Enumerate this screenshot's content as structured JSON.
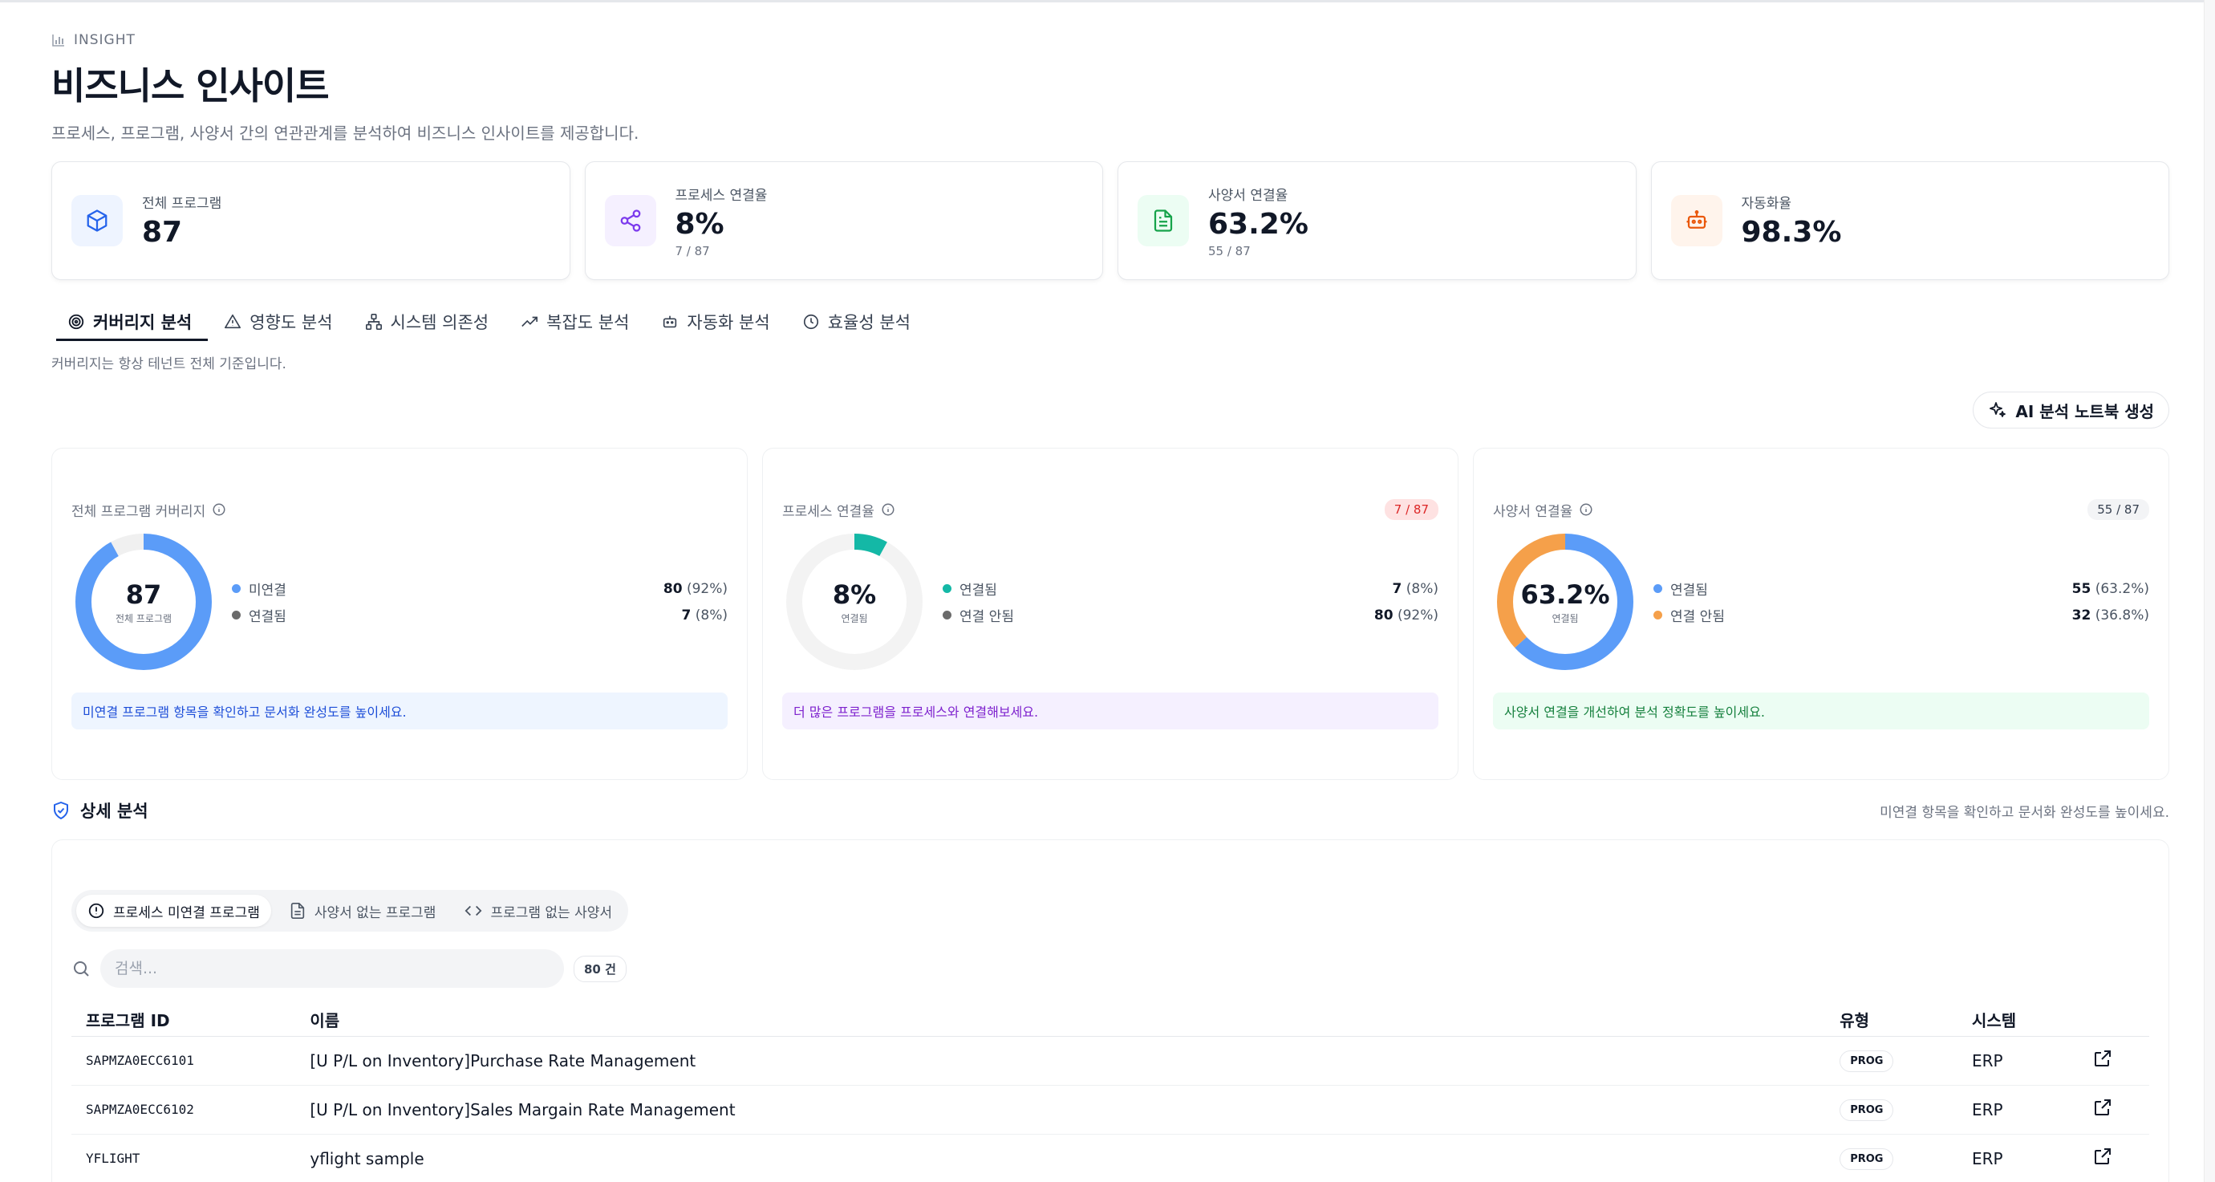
{
  "header": {
    "eyebrow": "INSIGHT",
    "title": "비즈니스 인사이트",
    "description": "프로세스, 프로그램, 사양서 간의 연관관계를 분석하여 비즈니스 인사이트를 제공합니다."
  },
  "stats": [
    {
      "label": "전체 프로그램",
      "value": "87",
      "sub": "",
      "icon": "cube-icon",
      "color": "#2563eb",
      "bg": "#eef4ff"
    },
    {
      "label": "프로세스 연결율",
      "value": "8%",
      "sub": "7 / 87",
      "icon": "share-icon",
      "color": "#7c3aed",
      "bg": "#f5f0ff"
    },
    {
      "label": "사양서 연결율",
      "value": "63.2%",
      "sub": "55 / 87",
      "icon": "document-icon",
      "color": "#16a34a",
      "bg": "#ecfdf3"
    },
    {
      "label": "자동화율",
      "value": "98.3%",
      "sub": "",
      "icon": "robot-icon",
      "color": "#ea580c",
      "bg": "#fff4ec"
    }
  ],
  "tabs": [
    {
      "label": "커버리지 분석",
      "icon": "target-icon",
      "active": true
    },
    {
      "label": "영향도 분석",
      "icon": "warning-icon",
      "active": false
    },
    {
      "label": "시스템 의존성",
      "icon": "network-icon",
      "active": false
    },
    {
      "label": "복잡도 분석",
      "icon": "trend-icon",
      "active": false
    },
    {
      "label": "자동화 분석",
      "icon": "robot-icon",
      "active": false
    },
    {
      "label": "효율성 분석",
      "icon": "clock-icon",
      "active": false
    }
  ],
  "tab_note": "커버리지는 항상 테넌트 전체 기준입니다.",
  "ai_button": "AI 분석 노트북 생성",
  "charts": [
    {
      "title": "전체 프로그램 커버리지",
      "badge": "",
      "center_value": "87",
      "center_sub": "전체 프로그램",
      "slices": [
        {
          "label": "미연결",
          "count": "80",
          "pct": "(92%)",
          "fraction": 0.92,
          "color": "#5b9cf8"
        },
        {
          "label": "연결됨",
          "count": "7",
          "pct": "(8%)",
          "fraction": 0.08,
          "color": "#f0f0f0",
          "dot": "#6b6b6b"
        }
      ],
      "tip": "미연결 프로그램 항목을 확인하고 문서화 완성도를 높이세요.",
      "tip_style": "blue"
    },
    {
      "title": "프로세스 연결율",
      "badge": "7 / 87",
      "center_value": "8%",
      "center_sub": "연결됨",
      "slices": [
        {
          "label": "연결됨",
          "count": "7",
          "pct": "(8%)",
          "fraction": 0.08,
          "color": "#14b8a6"
        },
        {
          "label": "연결 안됨",
          "count": "80",
          "pct": "(92%)",
          "fraction": 0.92,
          "color": "#f3f3f3",
          "dot": "#6b6b6b"
        }
      ],
      "tip": "더 많은 프로그램을 프로세스와 연결해보세요.",
      "tip_style": "purple"
    },
    {
      "title": "사양서 연결율",
      "badge": "55 / 87",
      "center_value": "63.2%",
      "center_sub": "연결됨",
      "slices": [
        {
          "label": "연결됨",
          "count": "55",
          "pct": "(63.2%)",
          "fraction": 0.632,
          "color": "#5b9cf8"
        },
        {
          "label": "연결 안됨",
          "count": "32",
          "pct": "(36.8%)",
          "fraction": 0.368,
          "color": "#f5a04a"
        }
      ],
      "tip": "사양서 연결을 개선하여 분석 정확도를 높이세요.",
      "tip_style": "green"
    }
  ],
  "detail": {
    "title": "상세 분석",
    "note": "미연결 항목을 확인하고 문서화 완성도를 높이세요.",
    "subtabs": [
      {
        "label": "프로세스 미연결 프로그램",
        "icon": "alert-circle-icon",
        "active": true
      },
      {
        "label": "사양서 없는 프로그램",
        "icon": "document-icon",
        "active": false
      },
      {
        "label": "프로그램 없는 사양서",
        "icon": "code-icon",
        "active": false
      }
    ],
    "search_placeholder": "검색...",
    "count": "80 건",
    "columns": [
      "프로그램 ID",
      "이름",
      "유형",
      "시스템"
    ],
    "rows": [
      {
        "id": "SAPMZA0ECC6101",
        "name": "[U P/L on Inventory]Purchase Rate Management",
        "type": "PROG",
        "system": "ERP"
      },
      {
        "id": "SAPMZA0ECC6102",
        "name": "[U P/L on Inventory]Sales Margain Rate Management",
        "type": "PROG",
        "system": "ERP"
      },
      {
        "id": "YFLIGHT",
        "name": "yflight sample",
        "type": "PROG",
        "system": "ERP"
      }
    ]
  }
}
